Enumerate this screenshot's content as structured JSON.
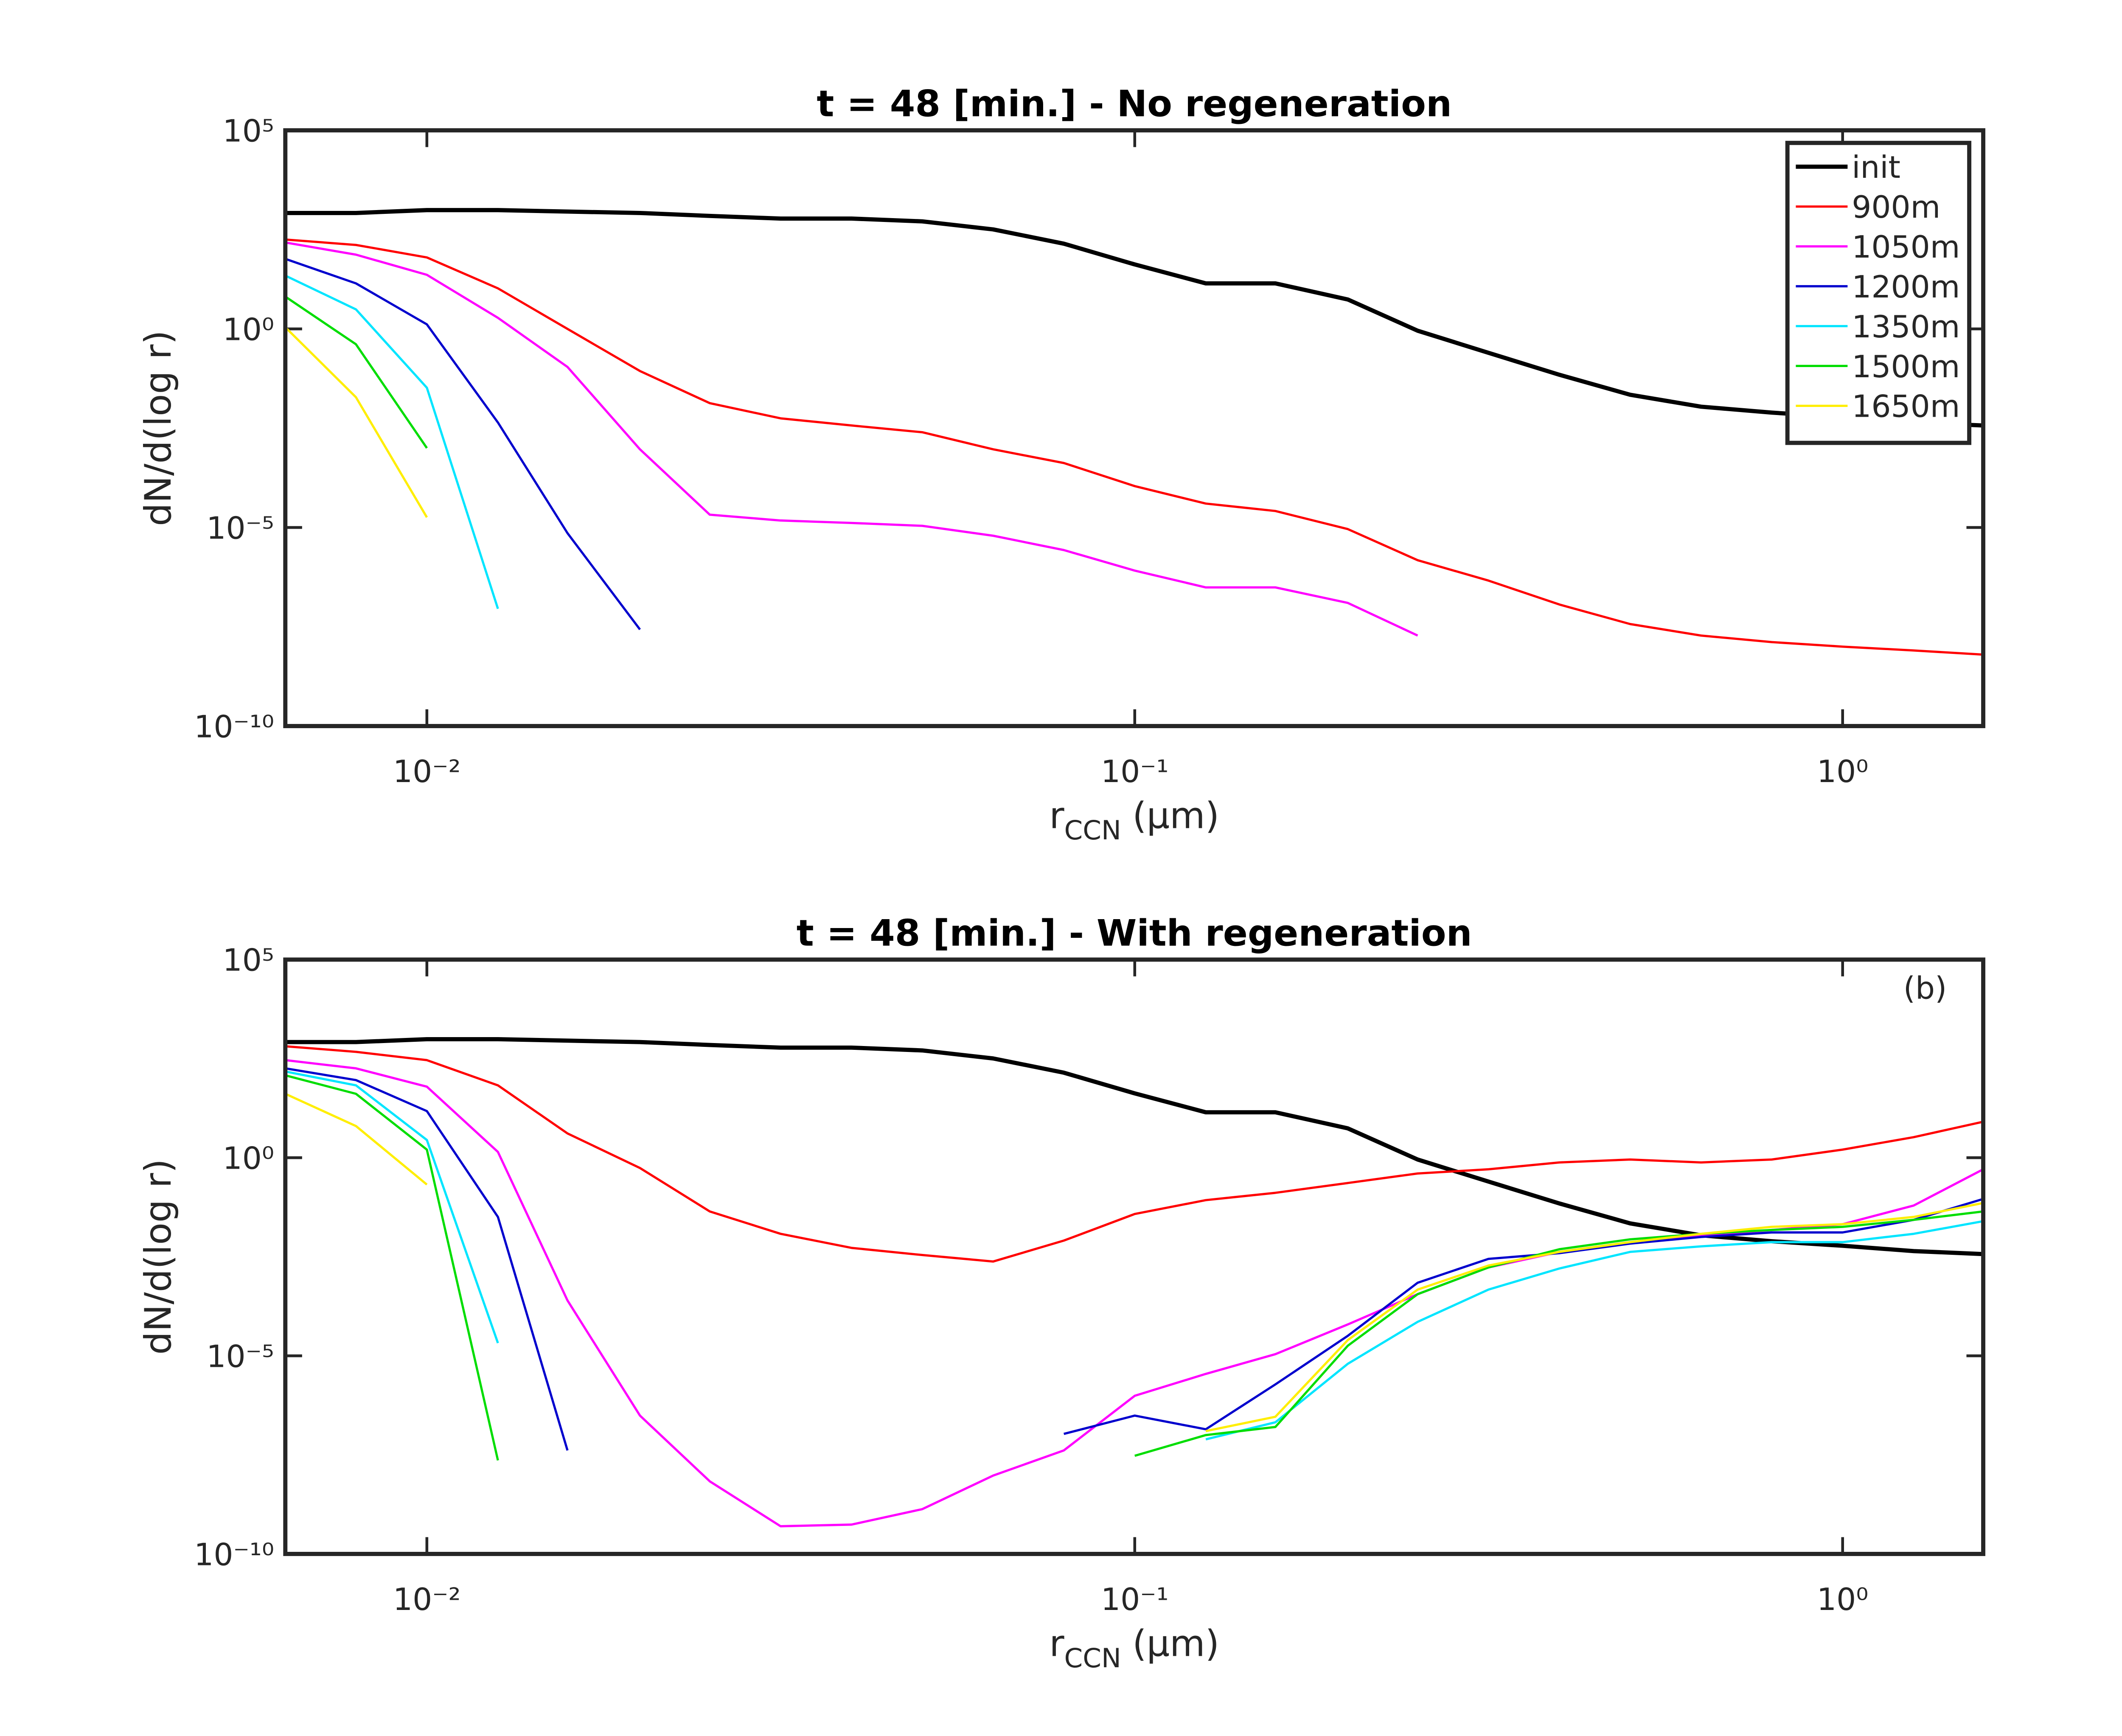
{
  "chart_data": [
    {
      "type": "line",
      "title": "t =  48 [min.] - No regeneration",
      "xlabel": {
        "text": "r",
        "subscript": "CCN",
        "suffix": "(μm)"
      },
      "ylabel": "dN/d(log r)",
      "xscale": "log",
      "yscale": "log",
      "xlim": [
        0.00631,
        1.58
      ],
      "ylim": [
        1e-10,
        100000
      ],
      "xticks": [
        {
          "value": 0.01,
          "label": "10⁻²"
        },
        {
          "value": 0.1,
          "label": "10⁻¹"
        },
        {
          "value": 1,
          "label": "10⁰"
        }
      ],
      "yticks": [
        {
          "value": 1e-10,
          "label": "10⁻¹⁰"
        },
        {
          "value": 1e-05,
          "label": "10⁻⁵"
        },
        {
          "value": 1,
          "label": "10⁰"
        },
        {
          "value": 100000,
          "label": "10⁵"
        }
      ],
      "legend": "northeast",
      "x": [
        0.00631,
        0.00794,
        0.01,
        0.0126,
        0.0158,
        0.02,
        0.0251,
        0.0316,
        0.0398,
        0.0501,
        0.0631,
        0.0794,
        0.1,
        0.126,
        0.158,
        0.2,
        0.251,
        0.316,
        0.398,
        0.501,
        0.631,
        0.794,
        1,
        1.26,
        1.58
      ],
      "series": [
        {
          "name": "init",
          "color": "#000000",
          "values": [
            830,
            830,
            980,
            980,
            900,
            830,
            700,
            600,
            600,
            510,
            320,
            140,
            42,
            14,
            14,
            5.5,
            0.9,
            0.25,
            0.07,
            0.022,
            0.011,
            0.0078,
            0.006,
            0.0044,
            0.0037
          ]
        },
        {
          "name": "900m",
          "color": "#ff0000",
          "values": [
            178,
            130,
            63,
            10.5,
            1.0,
            0.087,
            0.0135,
            0.0056,
            0.0037,
            0.0025,
            0.00093,
            0.00042,
            0.00011,
            4e-05,
            2.6e-05,
            9.1e-06,
            1.5e-06,
            4.6e-07,
            1.15e-07,
            3.7e-08,
            1.9e-08,
            1.3e-08,
            1e-08,
            8e-09,
            6.3e-09
          ]
        },
        {
          "name": "1050m",
          "color": "#ff00ff",
          "values": [
            150,
            74,
            23,
            1.9,
            0.11,
            0.00093,
            2.1e-05,
            1.5e-05,
            1.3e-05,
            1.1e-05,
            6.2e-06,
            2.7e-06,
            8.2e-07,
            3.1e-07,
            3.1e-07,
            1.26e-07,
            1.9e-08,
            null,
            null,
            null,
            null,
            null,
            null,
            null,
            null
          ]
        },
        {
          "name": "1200m",
          "color": "#0000cd",
          "values": [
            58,
            14,
            1.3,
            0.0044,
            7.2e-06,
            2.7e-08,
            null,
            null,
            null,
            null,
            null,
            null,
            null,
            null,
            null,
            null,
            null,
            null,
            null,
            null,
            null,
            null,
            null,
            null,
            null
          ]
        },
        {
          "name": "1350m",
          "color": "#00e5ff",
          "values": [
            22,
            3.1,
            0.033,
            9e-08,
            null,
            null,
            null,
            null,
            null,
            null,
            null,
            null,
            null,
            null,
            null,
            null,
            null,
            null,
            null,
            null,
            null,
            null,
            null,
            null,
            null
          ]
        },
        {
          "name": "1500m",
          "color": "#00dd00",
          "values": [
            6.5,
            0.41,
            0.001,
            null,
            null,
            null,
            null,
            null,
            null,
            null,
            null,
            null,
            null,
            null,
            null,
            null,
            null,
            null,
            null,
            null,
            null,
            null,
            null,
            null,
            null
          ]
        },
        {
          "name": "1650m",
          "color": "#ffee00",
          "values": [
            1.1,
            0.019,
            1.8e-05,
            null,
            null,
            null,
            null,
            null,
            null,
            null,
            null,
            null,
            null,
            null,
            null,
            null,
            null,
            null,
            null,
            null,
            null,
            null,
            null,
            null,
            null
          ]
        }
      ]
    },
    {
      "type": "line",
      "title": "t =  48 [min.] - With regeneration",
      "xlabel": {
        "text": "r",
        "subscript": "CCN",
        "suffix": "(μm)"
      },
      "ylabel": "dN/d(log r)",
      "xscale": "log",
      "yscale": "log",
      "xlim": [
        0.00631,
        1.58
      ],
      "ylim": [
        1e-10,
        100000
      ],
      "xticks": [
        {
          "value": 0.01,
          "label": "10⁻²"
        },
        {
          "value": 0.1,
          "label": "10⁻¹"
        },
        {
          "value": 1,
          "label": "10⁰"
        }
      ],
      "yticks": [
        {
          "value": 1e-10,
          "label": "10⁻¹⁰"
        },
        {
          "value": 1e-05,
          "label": "10⁻⁵"
        },
        {
          "value": 1,
          "label": "10⁰"
        },
        {
          "value": 100000,
          "label": "10⁵"
        }
      ],
      "annotation": "(b)",
      "x": [
        0.00631,
        0.00794,
        0.01,
        0.0126,
        0.0158,
        0.02,
        0.0251,
        0.0316,
        0.0398,
        0.0501,
        0.0631,
        0.0794,
        0.1,
        0.126,
        0.158,
        0.2,
        0.251,
        0.316,
        0.398,
        0.501,
        0.631,
        0.794,
        1,
        1.26,
        1.58
      ],
      "series": [
        {
          "color": "#000000",
          "values": [
            830,
            830,
            980,
            980,
            900,
            830,
            700,
            600,
            600,
            510,
            320,
            140,
            42,
            14,
            14,
            5.5,
            0.9,
            0.25,
            0.07,
            0.022,
            0.011,
            0.0078,
            0.006,
            0.0044,
            0.0037
          ]
        },
        {
          "color": "#ff0000",
          "values": [
            650,
            470,
            290,
            67,
            4.1,
            0.55,
            0.044,
            0.012,
            0.0053,
            0.0035,
            0.0024,
            0.0081,
            0.038,
            0.085,
            0.13,
            0.23,
            0.4,
            0.51,
            0.76,
            0.9,
            0.76,
            0.9,
            1.6,
            3.3,
            8.1
          ]
        },
        {
          "color": "#ff00ff",
          "values": [
            290,
            180,
            62,
            1.4,
            0.00025,
            3.1e-07,
            6.8e-09,
            5e-10,
            5.5e-10,
            1.35e-09,
            9.5e-09,
            4.1e-08,
            9.8e-07,
            3.5e-06,
            1.1e-05,
            6.2e-05,
            0.00036,
            0.0017,
            0.0042,
            0.0074,
            0.011,
            0.015,
            0.021,
            0.062,
            0.51
          ]
        },
        {
          "color": "#0000cd",
          "values": [
            180,
            91,
            15,
            0.032,
            4.1e-08,
            null,
            null,
            null,
            null,
            null,
            null,
            1.07e-07,
            3.1e-07,
            1.4e-07,
            1.9e-06,
            3.2e-05,
            0.0007,
            0.0028,
            0.0039,
            0.0068,
            0.01,
            0.013,
            0.013,
            0.027,
            0.091
          ]
        },
        {
          "color": "#00e5ff",
          "values": [
            150,
            67,
            2.8,
            2.1e-05,
            null,
            null,
            null,
            null,
            null,
            null,
            null,
            null,
            null,
            7.8e-08,
            2.1e-07,
            6.3e-06,
            7.2e-05,
            0.00047,
            0.0016,
            0.0042,
            0.0058,
            0.0074,
            0.0074,
            0.012,
            0.025
          ]
        },
        {
          "color": "#00dd00",
          "values": [
            120,
            41,
            1.6,
            2.3e-08,
            null,
            null,
            null,
            null,
            null,
            null,
            null,
            null,
            3e-08,
            1e-07,
            1.6e-07,
            1.8e-05,
            0.00036,
            0.0017,
            0.0049,
            0.0087,
            0.012,
            0.015,
            0.018,
            0.027,
            0.044
          ]
        },
        {
          "color": "#ffee00",
          "values": [
            41,
            6.3,
            0.21,
            null,
            null,
            null,
            null,
            null,
            null,
            null,
            null,
            null,
            null,
            1.26e-07,
            2.9e-07,
            2.5e-05,
            0.00047,
            0.0019,
            0.0042,
            0.0074,
            0.012,
            0.018,
            0.021,
            0.032,
            0.072
          ]
        }
      ]
    }
  ]
}
